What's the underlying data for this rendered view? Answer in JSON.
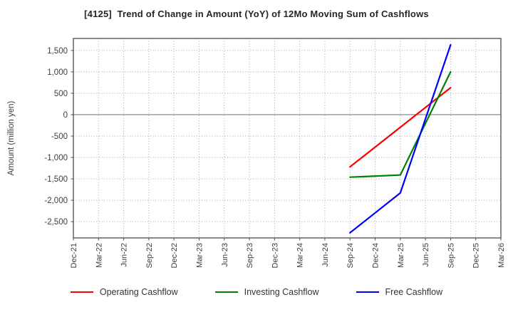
{
  "chart_data": {
    "type": "line",
    "title": "[4125]  Trend of Change in Amount (YoY) of 12Mo Moving Sum of Cashflows",
    "ylabel": "Amount (million yen)",
    "xlabel": "",
    "x_ticks": [
      "Dec-21",
      "Mar-22",
      "Jun-22",
      "Sep-22",
      "Dec-22",
      "Mar-23",
      "Jun-23",
      "Sep-23",
      "Dec-23",
      "Mar-24",
      "Jun-24",
      "Sep-24",
      "Dec-24",
      "Mar-25",
      "Jun-25",
      "Sep-25",
      "Dec-25",
      "Mar-26"
    ],
    "y_ticks": [
      1500,
      1000,
      500,
      0,
      -500,
      -1000,
      -1500,
      -2000,
      -2500
    ],
    "ylim": [
      -2880,
      1780
    ],
    "grid": true,
    "grid_style": "dotted",
    "zero_line": true,
    "legend_position": "bottom",
    "series": [
      {
        "name": "Operating Cashflow",
        "color": "#ff0000",
        "points": [
          {
            "x": "Sep-24",
            "y": -1220
          },
          {
            "x": "Sep-25",
            "y": 630
          }
        ]
      },
      {
        "name": "Investing Cashflow",
        "color": "#008000",
        "points": [
          {
            "x": "Sep-24",
            "y": -1460
          },
          {
            "x": "Mar-25",
            "y": -1410
          },
          {
            "x": "Sep-25",
            "y": 1000
          }
        ]
      },
      {
        "name": "Free Cashflow",
        "color": "#0000ff",
        "points": [
          {
            "x": "Sep-24",
            "y": -2760
          },
          {
            "x": "Mar-25",
            "y": -1830
          },
          {
            "x": "Sep-25",
            "y": 1630
          }
        ]
      }
    ]
  },
  "colors": {
    "title_text": "#262626",
    "tick_text": "#3c3c3c",
    "border": "#4a4a4a",
    "grid": "#9e9e9e",
    "zero_line": "#7d7d7d",
    "background": "#ffffff"
  }
}
